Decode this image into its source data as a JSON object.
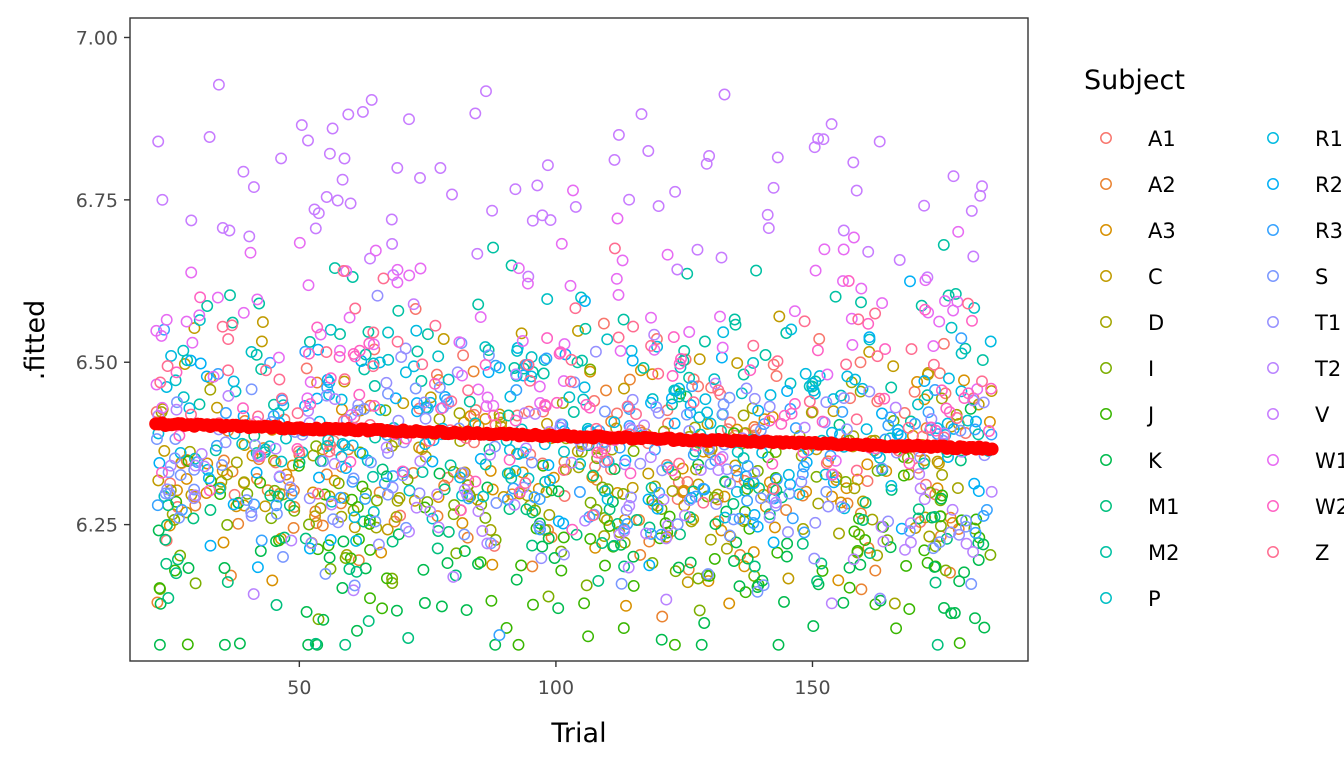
{
  "chart_data": {
    "type": "scatter",
    "title": "",
    "xlabel": "Trial",
    "ylabel": ".fitted",
    "xlim": [
      17,
      192
    ],
    "ylim": [
      6.04,
      7.03
    ],
    "x_ticks": [
      50,
      100,
      150
    ],
    "y_ticks": [
      6.25,
      6.5,
      6.75,
      7.0
    ],
    "x_tick_labels": [
      "50",
      "100",
      "150"
    ],
    "y_tick_labels": [
      "6.25",
      "6.50",
      "6.75",
      "7.00"
    ],
    "grid": false,
    "legend_title": "Subject",
    "legend_placement": "right",
    "point_style": "hollow-circle",
    "x_range_of_points": [
      22,
      185
    ],
    "series": [
      {
        "name": "A1",
        "color": "#F8766D",
        "y_center": 6.4
      },
      {
        "name": "A2",
        "color": "#EA8331",
        "y_center": 6.3
      },
      {
        "name": "A3",
        "color": "#D89000",
        "y_center": 6.32
      },
      {
        "name": "C",
        "color": "#C09B00",
        "y_center": 6.38
      },
      {
        "name": "D",
        "color": "#A3A500",
        "y_center": 6.34
      },
      {
        "name": "I",
        "color": "#7CAE00",
        "y_center": 6.27
      },
      {
        "name": "J",
        "color": "#39B600",
        "y_center": 6.23
      },
      {
        "name": "K",
        "color": "#00BB4E",
        "y_center": 6.18
      },
      {
        "name": "M1",
        "color": "#00BF7D",
        "y_center": 6.26
      },
      {
        "name": "M2",
        "color": "#00C1A3",
        "y_center": 6.5
      },
      {
        "name": "P",
        "color": "#00BFC4",
        "y_center": 6.43
      },
      {
        "name": "R1",
        "color": "#00BAE0",
        "y_center": 6.41
      },
      {
        "name": "R2",
        "color": "#00B0F6",
        "y_center": 6.37
      },
      {
        "name": "R3",
        "color": "#35A2FF",
        "y_center": 6.35
      },
      {
        "name": "S",
        "color": "#7997FF",
        "y_center": 6.33
      },
      {
        "name": "T1",
        "color": "#9590FF",
        "y_center": 6.36
      },
      {
        "name": "T2",
        "color": "#B983FF",
        "y_center": 6.31
      },
      {
        "name": "V",
        "color": "#C77CFF",
        "y_center": 6.77
      },
      {
        "name": "W1",
        "color": "#E76BF3",
        "y_center": 6.56
      },
      {
        "name": "W2",
        "color": "#FF61C3",
        "y_center": 6.44
      },
      {
        "name": "Z",
        "color": "#FF6C90",
        "y_center": 6.46
      }
    ],
    "trend_line": {
      "color": "#FF0000",
      "x": [
        22,
        185
      ],
      "y": [
        6.405,
        6.367
      ]
    }
  }
}
